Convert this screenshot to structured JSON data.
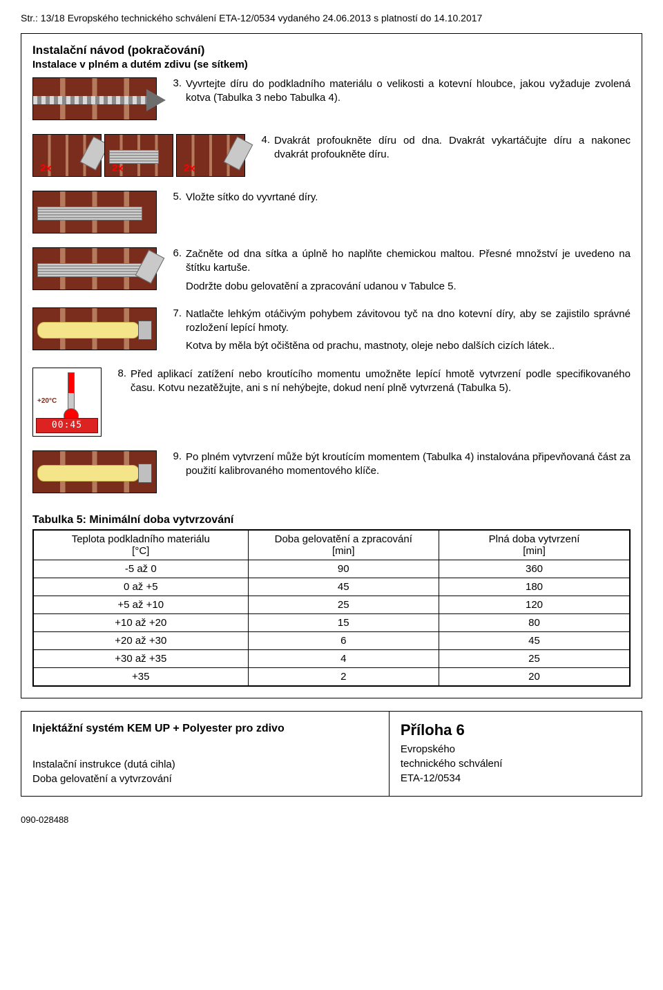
{
  "page_header": "Str.: 13/18 Evropského technického schválení ETA-12/0534 vydaného 24.06.2013 s platností do 14.10.2017",
  "section_title": "Instalační návod (pokračování)",
  "section_sub": "Instalace v plném a dutém zdivu (se sítkem)",
  "x2_label": "2x",
  "thermo_label": "+20°C",
  "thermo_timer": "00:45",
  "steps": {
    "s3": {
      "n": "3.",
      "t": "Vyvrtejte díru do podkladního materiálu o velikosti a kotevní hloubce, jakou vyžaduje zvolená kotva (Tabulka 3 nebo Tabulka 4)."
    },
    "s4": {
      "n": "4.",
      "t": "Dvakrát profoukněte díru od dna. Dvakrát vykartáčujte díru a nakonec dvakrát profoukněte díru."
    },
    "s5": {
      "n": "5.",
      "t": "Vložte sítko do vyvrtané díry."
    },
    "s6": {
      "n": "6.",
      "t": "Začněte od dna sítka a úplně ho naplňte chemickou maltou. Přesné množství je uvedeno na štítku kartuše.",
      "t2": "Dodržte dobu gelovatění a zpracování udanou v Tabulce 5."
    },
    "s7": {
      "n": "7.",
      "t": "Natlačte lehkým otáčivým pohybem závitovou tyč na dno kotevní díry, aby se zajistilo správné rozložení lepící hmoty.",
      "t2": "Kotva by měla být očištěna od prachu, mastnoty, oleje nebo dalších cizích látek.."
    },
    "s8": {
      "n": "8.",
      "t": "Před aplikací zatížení nebo kroutícího momentu umožněte lepící hmotě vytvrzení podle specifikovaného času. Kotvu nezatěžujte, ani s ní nehýbejte, dokud není plně vytvrzená (Tabulka 5)."
    },
    "s9": {
      "n": "9.",
      "t": "Po plném vytvrzení může být kroutícím momentem (Tabulka 4) instalována připevňovaná část za použití kalibrovaného momentového klíče."
    }
  },
  "table_title": "Tabulka 5: Minimální doba vytvrzování",
  "table_headers": {
    "c1a": "Teplota podkladního materiálu",
    "c1b": "[°C]",
    "c2a": "Doba gelovatění a zpracování",
    "c2b": "[min]",
    "c3a": "Plná doba vytvrzení",
    "c3b": "[min]"
  },
  "table_rows": [
    {
      "c1": "-5  až  0",
      "c2": "90",
      "c3": "360"
    },
    {
      "c1": "0  až  +5",
      "c2": "45",
      "c3": "180"
    },
    {
      "c1": "+5  až  +10",
      "c2": "25",
      "c3": "120"
    },
    {
      "c1": "+10  až  +20",
      "c2": "15",
      "c3": "80"
    },
    {
      "c1": "+20  až  +30",
      "c2": "6",
      "c3": "45"
    },
    {
      "c1": "+30  až  +35",
      "c2": "4",
      "c3": "25"
    },
    {
      "c1": "+35",
      "c2": "2",
      "c3": "20"
    }
  ],
  "footer": {
    "left_title": "Injektážní systém KEM UP + Polyester pro zdivo",
    "left_line1": "Instalační instrukce (dutá cihla)",
    "left_line2": "Doba gelovatění a vytvrzování",
    "right_title": "Příloha 6",
    "right_line1": "Evropského",
    "right_line2": "technického schválení",
    "right_line3": "ETA-12/0534"
  },
  "doc_code": "090-028488"
}
